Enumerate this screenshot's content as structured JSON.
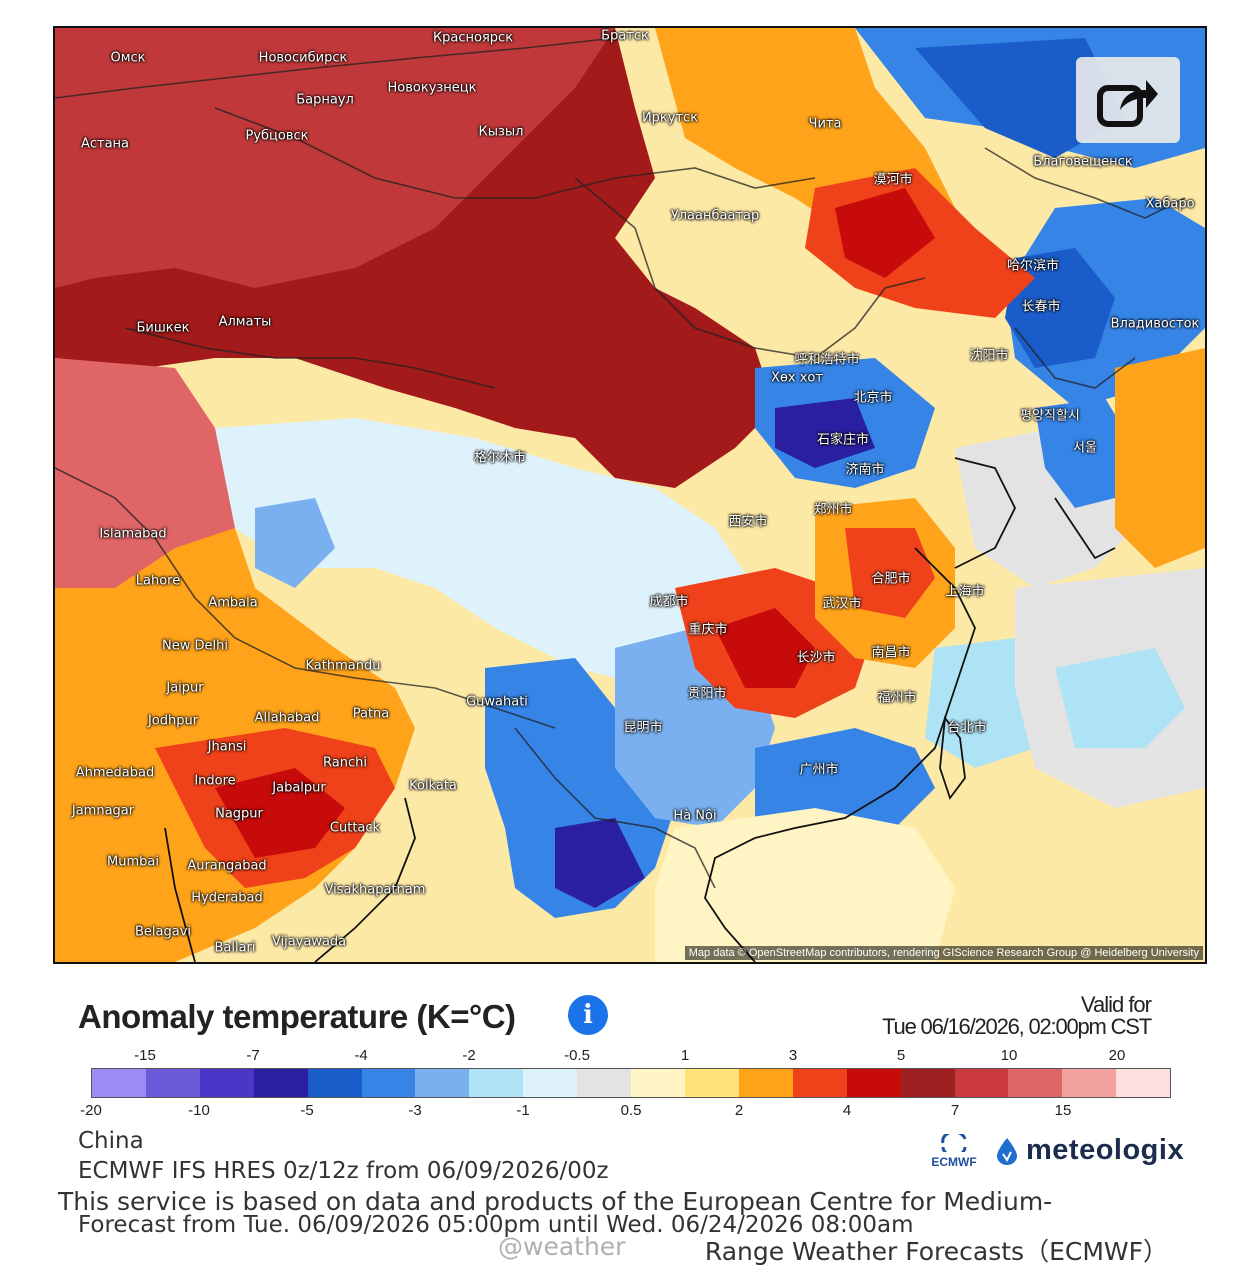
{
  "title": "Anomaly temperature (K=°C)",
  "valid_label": "Valid for",
  "valid_time": "Tue 06/16/2026, 02:00pm CST",
  "region": "China",
  "model": "ECMWF IFS HRES 0z/12z from 06/09/2026/00z",
  "forecast_range": "Forecast from Tue. 06/09/2026 05:00pm until Wed. 06/24/2026 08:00am",
  "notice_line1": "This service is based on data and products of the European Centre for Medium-",
  "notice_line2": "Range Weather Forecasts（ECMWF）",
  "watermark": "@weather",
  "attribution": "Map data © OpenStreetMap contributors, rendering GIScience Research Group @ Heidelberg University",
  "logos": {
    "ecmwf": "ECMWF",
    "meteologix": "meteologix"
  },
  "legend": {
    "colors": [
      "#9b8cf5",
      "#6a5bd9",
      "#4a37c7",
      "#2a1fa0",
      "#1a5cc9",
      "#3584e6",
      "#7ab0ef",
      "#aee2f5",
      "#def2fb",
      "#e3e3e3",
      "#fff5c4",
      "#ffe27a",
      "#ffa31a",
      "#f0421a",
      "#c70a0a",
      "#9e1f1f",
      "#c9393d",
      "#e06567",
      "#f4a1a1",
      "#fde0e0"
    ],
    "top_ticks": [
      "-15",
      "-7",
      "-4",
      "-2",
      "-0.5",
      "1",
      "3",
      "5",
      "10",
      "20"
    ],
    "bottom_ticks": [
      "-20",
      "-10",
      "-5",
      "-3",
      "-1",
      "0.5",
      "2",
      "4",
      "7",
      "15"
    ]
  },
  "cities": [
    {
      "name": "Омск"
    },
    {
      "name": "Новосибирск"
    },
    {
      "name": "Красноярск"
    },
    {
      "name": "Братск"
    },
    {
      "name": "Барнаул"
    },
    {
      "name": "Новокузнецк"
    },
    {
      "name": "Иркутск"
    },
    {
      "name": "Чита"
    },
    {
      "name": "Астана"
    },
    {
      "name": "Рубцовск"
    },
    {
      "name": "Кызыл"
    },
    {
      "name": "Улаанбаатар"
    },
    {
      "name": "Благовещенск"
    },
    {
      "name": "Хабаро"
    },
    {
      "name": "Бишкек"
    },
    {
      "name": "Алматы"
    },
    {
      "name": "Владивосток"
    },
    {
      "name": "Хөх хот"
    },
    {
      "name": "Islamabad"
    },
    {
      "name": "Lahore"
    },
    {
      "name": "Ambala"
    },
    {
      "name": "New Delhi"
    },
    {
      "name": "Kathmandu"
    },
    {
      "name": "Jaipur"
    },
    {
      "name": "Jodhpur"
    },
    {
      "name": "Allahabad"
    },
    {
      "name": "Patna"
    },
    {
      "name": "Guwahati"
    },
    {
      "name": "Jhansi"
    },
    {
      "name": "Ahmedabad"
    },
    {
      "name": "Indore"
    },
    {
      "name": "Ranchi"
    },
    {
      "name": "Jabalpur"
    },
    {
      "name": "Kolkata"
    },
    {
      "name": "Jamnagar"
    },
    {
      "name": "Nagpur"
    },
    {
      "name": "Cuttack"
    },
    {
      "name": "Mumbai"
    },
    {
      "name": "Aurangabad"
    },
    {
      "name": "Hyderabad"
    },
    {
      "name": "Visakhapatnam"
    },
    {
      "name": "Belagavi"
    },
    {
      "name": "Ballari"
    },
    {
      "name": "Vijayawada"
    },
    {
      "name": "Hà Nội"
    },
    {
      "name": "北京市"
    },
    {
      "name": "石家庄市"
    },
    {
      "name": "济南市"
    },
    {
      "name": "郑州市"
    },
    {
      "name": "西安市"
    },
    {
      "name": "合肥市"
    },
    {
      "name": "上海市"
    },
    {
      "name": "武汉市"
    },
    {
      "name": "成都市"
    },
    {
      "name": "重庆市"
    },
    {
      "name": "长沙市"
    },
    {
      "name": "南昌市"
    },
    {
      "name": "贵阳市"
    },
    {
      "name": "昆明市"
    },
    {
      "name": "广州市"
    },
    {
      "name": "福州市"
    },
    {
      "name": "台北市"
    },
    {
      "name": "长春市"
    },
    {
      "name": "沈阳市"
    },
    {
      "name": "哈尔滨市"
    },
    {
      "name": "서울"
    },
    {
      "name": "평양직할시"
    },
    {
      "name": "呼和浩特市"
    },
    {
      "name": "格尔木市"
    },
    {
      "name": "漠河市"
    }
  ]
}
